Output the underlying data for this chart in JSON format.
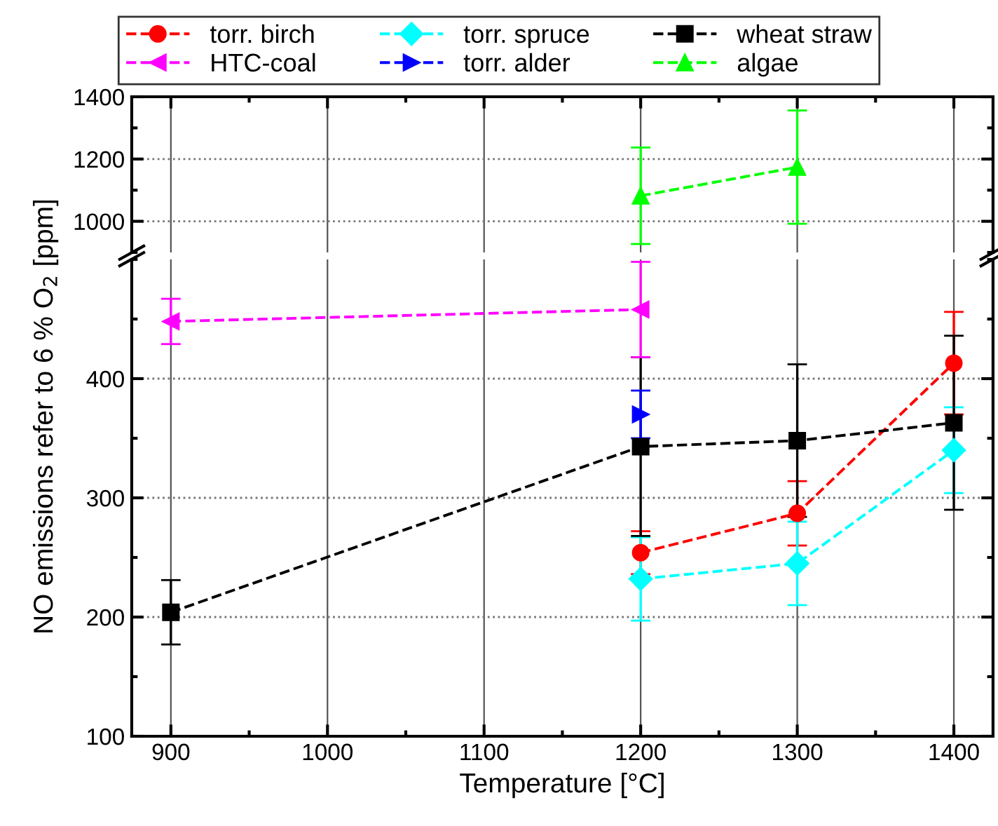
{
  "chart_data": [
    {
      "type": "line",
      "xlim": [
        875,
        1425
      ],
      "xticks": [
        900,
        1000,
        1100,
        1200,
        1300,
        1400
      ],
      "ylim": [
        900,
        1400
      ],
      "yticks": [
        1000,
        1200,
        1400
      ],
      "tick_labels": "y",
      "grid": true,
      "legend": "top",
      "line_style": "dashed",
      "series": [
        {
          "name": "algae",
          "color": "#00ff00",
          "marker": "triangle",
          "x": [
            1200,
            1300
          ],
          "values": [
            1082,
            1174
          ],
          "errors": [
            155,
            182
          ]
        }
      ]
    },
    {
      "type": "line",
      "xlabel": "Temperature [°C]",
      "ylabel": "NO emissions refer to 6 % O$_{2}$ [ppm]",
      "xlim": [
        875,
        1425
      ],
      "xticks": [
        900,
        1000,
        1100,
        1200,
        1300,
        1400
      ],
      "ylim": [
        100,
        500
      ],
      "yticks": [
        100,
        200,
        300,
        400
      ],
      "grid": true,
      "legend": "top",
      "line_style": "dashed",
      "series": [
        {
          "name": "torr. birch",
          "color": "#ff0000",
          "marker": "circle",
          "x": [
            1200,
            1300,
            1400
          ],
          "values": [
            254,
            287,
            413
          ],
          "errors": [
            18,
            27,
            43
          ]
        },
        {
          "name": "torr. spruce",
          "color": "#00ffff",
          "marker": "diamond",
          "x": [
            1200,
            1300,
            1400
          ],
          "values": [
            232,
            245,
            340
          ],
          "errors": [
            35,
            35,
            36
          ]
        },
        {
          "name": "wheat straw",
          "color": "#000000",
          "marker": "square",
          "x": [
            900,
            1200,
            1300,
            1400
          ],
          "values": [
            204,
            343,
            348,
            363
          ],
          "errors": [
            27,
            75,
            64,
            73
          ]
        },
        {
          "name": "HTC-coal",
          "color": "#ff00ff",
          "marker": "triangle-left",
          "x": [
            900,
            1200
          ],
          "values": [
            448,
            458
          ],
          "errors": [
            19,
            40
          ]
        },
        {
          "name": "torr. alder",
          "color": "#0000ff",
          "marker": "triangle-right",
          "x": [
            1200
          ],
          "values": [
            370
          ],
          "errors": [
            20
          ]
        }
      ]
    }
  ]
}
